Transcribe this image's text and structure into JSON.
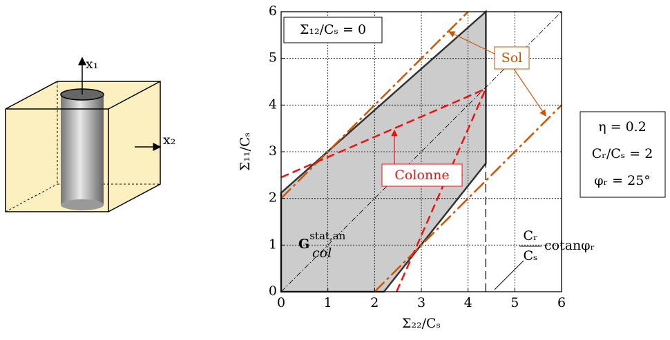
{
  "chart_data": {
    "type": "line",
    "xlabel": "Σ₂₂/Cₛ",
    "ylabel": "Σ₁₁/Cₛ",
    "xlim": [
      0,
      6
    ],
    "ylim": [
      0,
      6
    ],
    "xticks": [
      0,
      1,
      2,
      3,
      4,
      5,
      6
    ],
    "yticks": [
      0,
      1,
      2,
      3,
      4,
      5,
      6
    ],
    "grid": true,
    "series": [
      {
        "color": "#333333",
        "fill": "#cccccc",
        "dash": "solid",
        "closed": true,
        "x": [
          0,
          4.38,
          4.38,
          2.2,
          0
        ],
        "values": [
          2.12,
          6,
          2.75,
          0,
          0
        ]
      },
      {
        "color": "#000000",
        "dash": "dashdot",
        "x": [
          0,
          6
        ],
        "values": [
          0,
          6
        ]
      },
      {
        "color": "#000000",
        "dash": "dashed",
        "x": [
          4.38,
          4.38
        ],
        "values": [
          0,
          2.75
        ]
      },
      {
        "name": "Sol",
        "color": "#cc5500",
        "dash": "longdashdot",
        "x": [
          0,
          4.0
        ],
        "values": [
          2.0,
          6
        ]
      },
      {
        "color": "#cc5500",
        "dash": "longdashdot",
        "x": [
          2.0,
          6
        ],
        "values": [
          0,
          4
        ]
      },
      {
        "name": "Colonne",
        "color": "#ee1111",
        "dash": "dashed",
        "x": [
          0,
          4.38
        ],
        "values": [
          2.45,
          4.35
        ]
      },
      {
        "color": "#ee1111",
        "dash": "dashed",
        "x": [
          2.47,
          4.38
        ],
        "values": [
          0,
          4.35
        ]
      }
    ],
    "condition": "Σ₁₂/Cₛ = 0",
    "region_label": {
      "text": "G",
      "sup": "stat,an",
      "sub": "col"
    },
    "slope_label": {
      "num": "Cᵣ",
      "den": "Cₛ",
      "text": "cotanφᵣ"
    },
    "parameters": [
      "η = 0.2",
      "Cᵣ/Cₛ = 2",
      "φᵣ = 25°"
    ]
  },
  "figure": {
    "axis_1": "x₁",
    "axis_2": "x₂"
  }
}
